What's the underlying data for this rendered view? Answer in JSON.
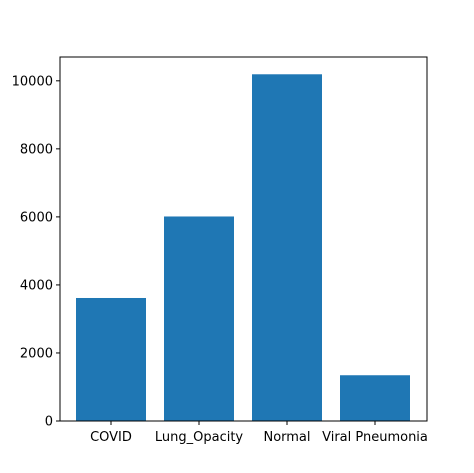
{
  "chart_data": {
    "type": "bar",
    "categories": [
      "COVID",
      "Lung_Opacity",
      "Normal",
      "Viral Pneumonia"
    ],
    "values": [
      3616,
      6012,
      10192,
      1345
    ],
    "title": "",
    "xlabel": "",
    "ylabel": "",
    "ylim": [
      0,
      10700
    ],
    "yticks": [
      0,
      2000,
      4000,
      6000,
      8000,
      10000
    ],
    "grid": false,
    "bar_color": "#1f77b4"
  }
}
